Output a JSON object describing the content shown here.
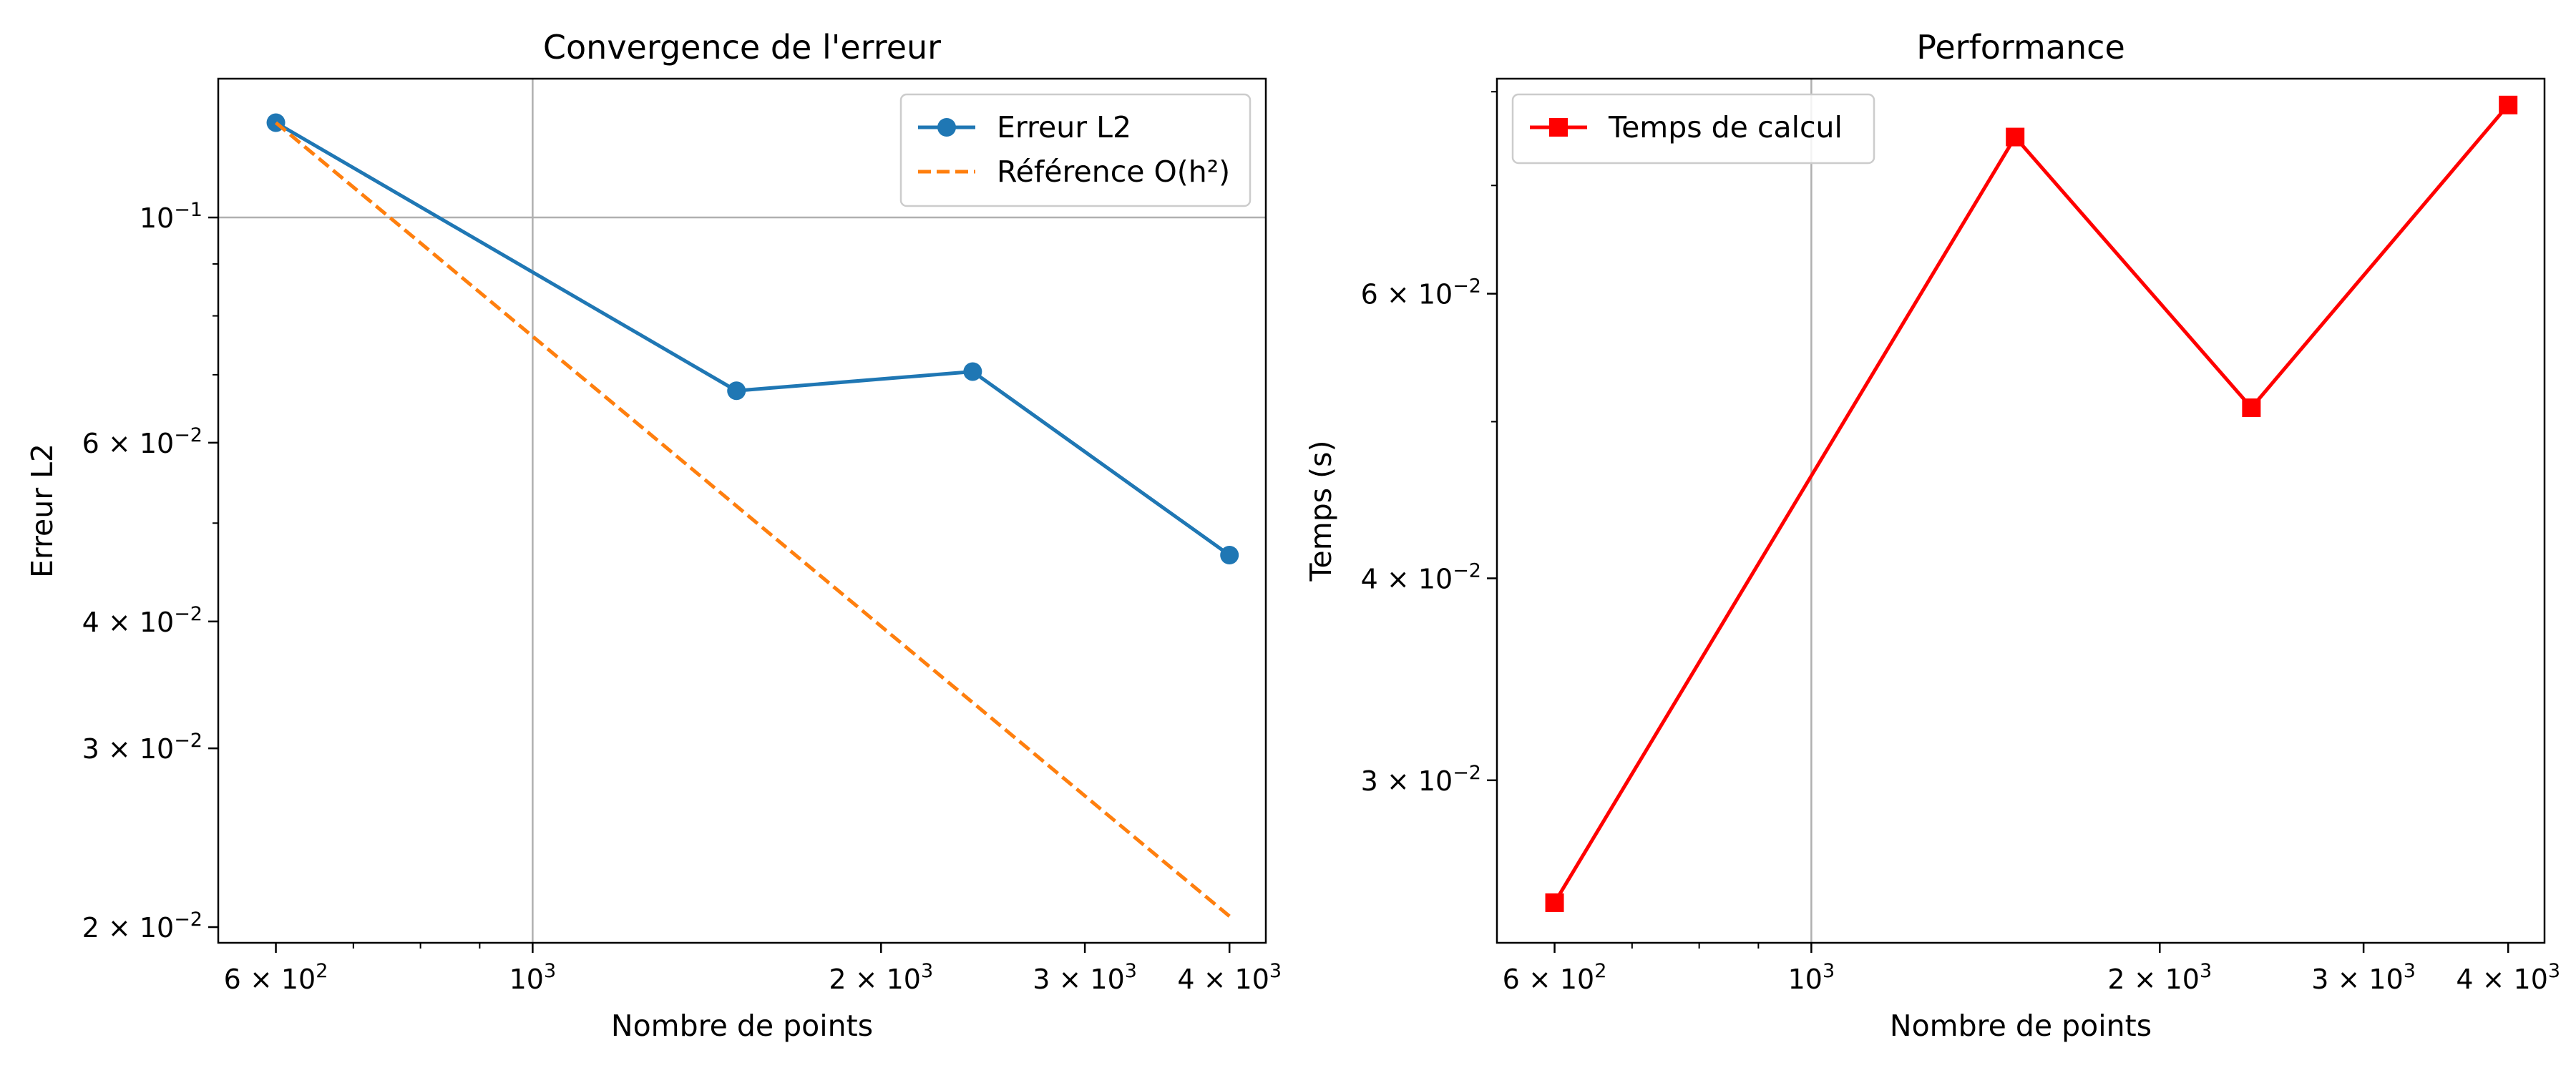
{
  "chart_data": [
    {
      "type": "line",
      "title": "Convergence de l'erreur",
      "xlabel": "Nombre de points",
      "ylabel": "Erreur L2",
      "xscale": "log",
      "yscale": "log",
      "xlim": [
        535,
        4300
      ],
      "ylim": [
        0.0193,
        0.137
      ],
      "grid": "major",
      "legend_position": "top-right",
      "x_ticks": [
        {
          "value": 600,
          "mantissa": "6",
          "exponent": "2"
        },
        {
          "value": 1000,
          "mantissa": "",
          "exponent": "3"
        },
        {
          "value": 2000,
          "mantissa": "2",
          "exponent": "3"
        },
        {
          "value": 3000,
          "mantissa": "3",
          "exponent": "3"
        },
        {
          "value": 4000,
          "mantissa": "4",
          "exponent": "3"
        }
      ],
      "y_ticks": [
        {
          "value": 0.02,
          "mantissa": "2",
          "exponent": "−2"
        },
        {
          "value": 0.03,
          "mantissa": "3",
          "exponent": "−2"
        },
        {
          "value": 0.04,
          "mantissa": "4",
          "exponent": "−2"
        },
        {
          "value": 0.06,
          "mantissa": "6",
          "exponent": "−2"
        },
        {
          "value": 0.1,
          "mantissa": "",
          "exponent": "−1"
        }
      ],
      "series": [
        {
          "name": "Erreur L2",
          "color": "#1f77b4",
          "style": "solid",
          "marker": "circle",
          "x": [
            600,
            1500,
            2400,
            4000
          ],
          "y": [
            0.124,
            0.0675,
            0.0705,
            0.0465
          ]
        },
        {
          "name": "Référence O(h²)",
          "color": "#ff7f0e",
          "style": "dashed",
          "marker": "none",
          "x": [
            600,
            4000
          ],
          "y": [
            0.124,
            0.0205
          ]
        }
      ]
    },
    {
      "type": "line",
      "title": "Performance",
      "xlabel": "Nombre de points",
      "ylabel": "Temps (s)",
      "xscale": "log",
      "yscale": "log",
      "xlim": [
        535,
        4300
      ],
      "ylim": [
        0.0238,
        0.0815
      ],
      "grid": "major",
      "legend_position": "top-left",
      "x_ticks": [
        {
          "value": 600,
          "mantissa": "6",
          "exponent": "2"
        },
        {
          "value": 1000,
          "mantissa": "",
          "exponent": "3"
        },
        {
          "value": 2000,
          "mantissa": "2",
          "exponent": "3"
        },
        {
          "value": 3000,
          "mantissa": "3",
          "exponent": "3"
        },
        {
          "value": 4000,
          "mantissa": "4",
          "exponent": "3"
        }
      ],
      "y_ticks": [
        {
          "value": 0.03,
          "mantissa": "3",
          "exponent": "−2"
        },
        {
          "value": 0.04,
          "mantissa": "4",
          "exponent": "−2"
        },
        {
          "value": 0.06,
          "mantissa": "6",
          "exponent": "−2"
        }
      ],
      "series": [
        {
          "name": "Temps de calcul",
          "color": "#ff0000",
          "style": "solid",
          "marker": "square",
          "x": [
            600,
            1500,
            2400,
            4000
          ],
          "y": [
            0.0252,
            0.075,
            0.051,
            0.0785
          ]
        }
      ]
    }
  ]
}
